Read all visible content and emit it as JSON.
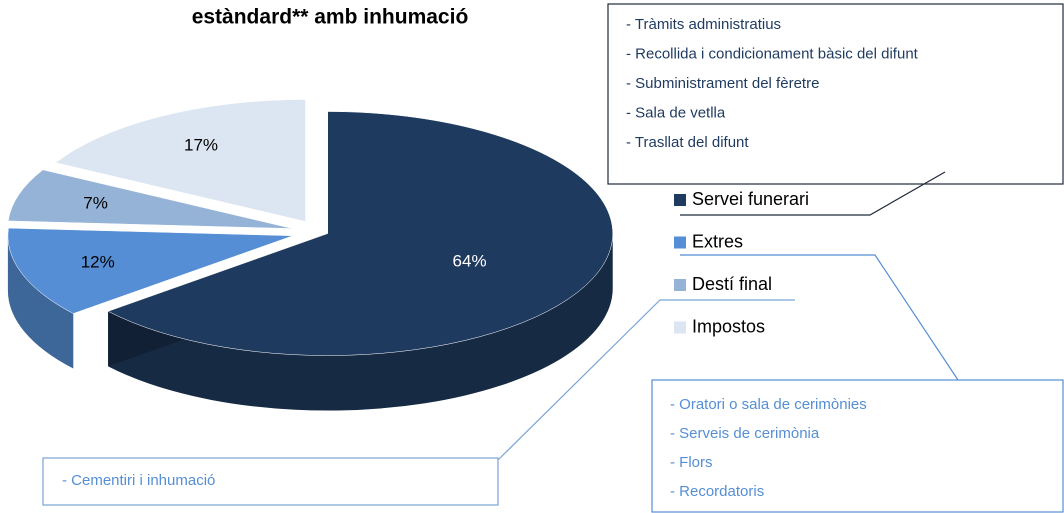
{
  "chart_data": {
    "type": "pie",
    "title": "estàndard** amb inhumació",
    "categories": [
      "Servei funerari",
      "Extres",
      "Destí final",
      "Impostos"
    ],
    "values": [
      64,
      12,
      7,
      17
    ],
    "value_labels": [
      "64%",
      "12%",
      "7%",
      "17%"
    ],
    "colors": [
      "#1f3a5f",
      "#558ed5",
      "#95b3d7",
      "#dce6f2"
    ],
    "legend": "right",
    "annotations": [
      {
        "category": "Servei funerari",
        "items": [
          "- Tràmits administratius",
          "- Recollida i condicionament bàsic del difunt",
          "- Subministrament del fèretre",
          "- Sala de vetlla",
          "- Trasllat del difunt"
        ]
      },
      {
        "category": "Extres",
        "items": [
          "- Oratori o sala de cerimònies",
          "- Serveis de cerimònia",
          "- Flors",
          "- Recordatoris"
        ]
      },
      {
        "category": "Destí final",
        "items": [
          "- Cementiri i inhumació"
        ]
      }
    ]
  }
}
